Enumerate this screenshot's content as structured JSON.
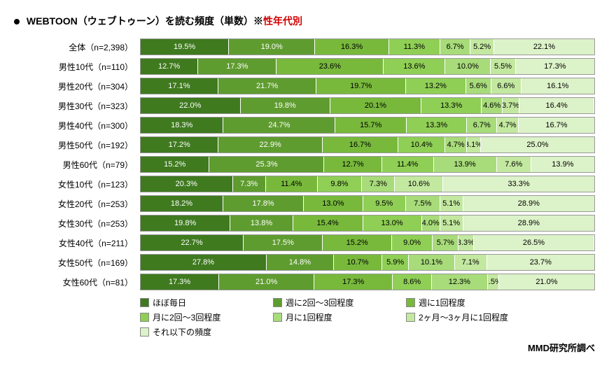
{
  "title_prefix": "WEBTOON（ウェブトゥーン）を読む頻度（単数）※",
  "title_highlight": "性年代別",
  "credit": "MMD研究所調べ",
  "legend_labels": [
    "ほぼ毎日",
    "週に2回～3回程度",
    "週に1回程度",
    "月に2回～3回程度",
    "月に1回程度",
    "2ヶ月～3ヶ月に1回程度",
    "それ以下の頻度"
  ],
  "colors": [
    "#3f7a1f",
    "#5f9c2f",
    "#78b93c",
    "#8fcf55",
    "#a8db7a",
    "#c3e8a0",
    "#dcf2c8"
  ],
  "text_colors": [
    "#ffffff",
    "#ffffff",
    "#000000",
    "#000000",
    "#000000",
    "#000000",
    "#000000"
  ],
  "rows": [
    {
      "label": "全体（n=2,398）",
      "v": [
        19.5,
        19.0,
        16.3,
        11.3,
        6.7,
        5.2,
        22.1
      ]
    },
    {
      "label": "男性10代（n=110）",
      "v": [
        12.7,
        17.3,
        23.6,
        13.6,
        10.0,
        5.5,
        17.3
      ]
    },
    {
      "label": "男性20代（n=304）",
      "v": [
        17.1,
        21.7,
        19.7,
        13.2,
        5.6,
        6.6,
        16.1
      ]
    },
    {
      "label": "男性30代（n=323）",
      "v": [
        22.0,
        19.8,
        20.1,
        13.3,
        4.6,
        3.7,
        16.4
      ]
    },
    {
      "label": "男性40代（n=300）",
      "v": [
        18.3,
        24.7,
        15.7,
        13.3,
        6.7,
        4.7,
        16.7
      ]
    },
    {
      "label": "男性50代（n=192）",
      "v": [
        17.2,
        22.9,
        16.7,
        10.4,
        4.7,
        3.1,
        25.0
      ]
    },
    {
      "label": "男性60代（n=79）",
      "v": [
        15.2,
        25.3,
        12.7,
        11.4,
        13.9,
        7.6,
        13.9
      ]
    },
    {
      "label": "女性10代（n=123）",
      "v": [
        20.3,
        7.3,
        11.4,
        9.8,
        7.3,
        10.6,
        33.3
      ]
    },
    {
      "label": "女性20代（n=253）",
      "v": [
        18.2,
        17.8,
        13.0,
        9.5,
        7.5,
        5.1,
        28.9
      ]
    },
    {
      "label": "女性30代（n=253）",
      "v": [
        19.8,
        13.8,
        15.4,
        13.0,
        4.0,
        5.1,
        28.9
      ]
    },
    {
      "label": "女性40代（n=211）",
      "v": [
        22.7,
        17.5,
        15.2,
        9.0,
        5.7,
        3.3,
        26.5
      ]
    },
    {
      "label": "女性50代（n=169）",
      "v": [
        27.8,
        14.8,
        10.7,
        5.9,
        10.1,
        7.1,
        23.7
      ]
    },
    {
      "label": "女性60代（n=81）",
      "v": [
        17.3,
        21.0,
        17.3,
        8.6,
        12.3,
        2.5,
        21.0
      ]
    }
  ]
}
